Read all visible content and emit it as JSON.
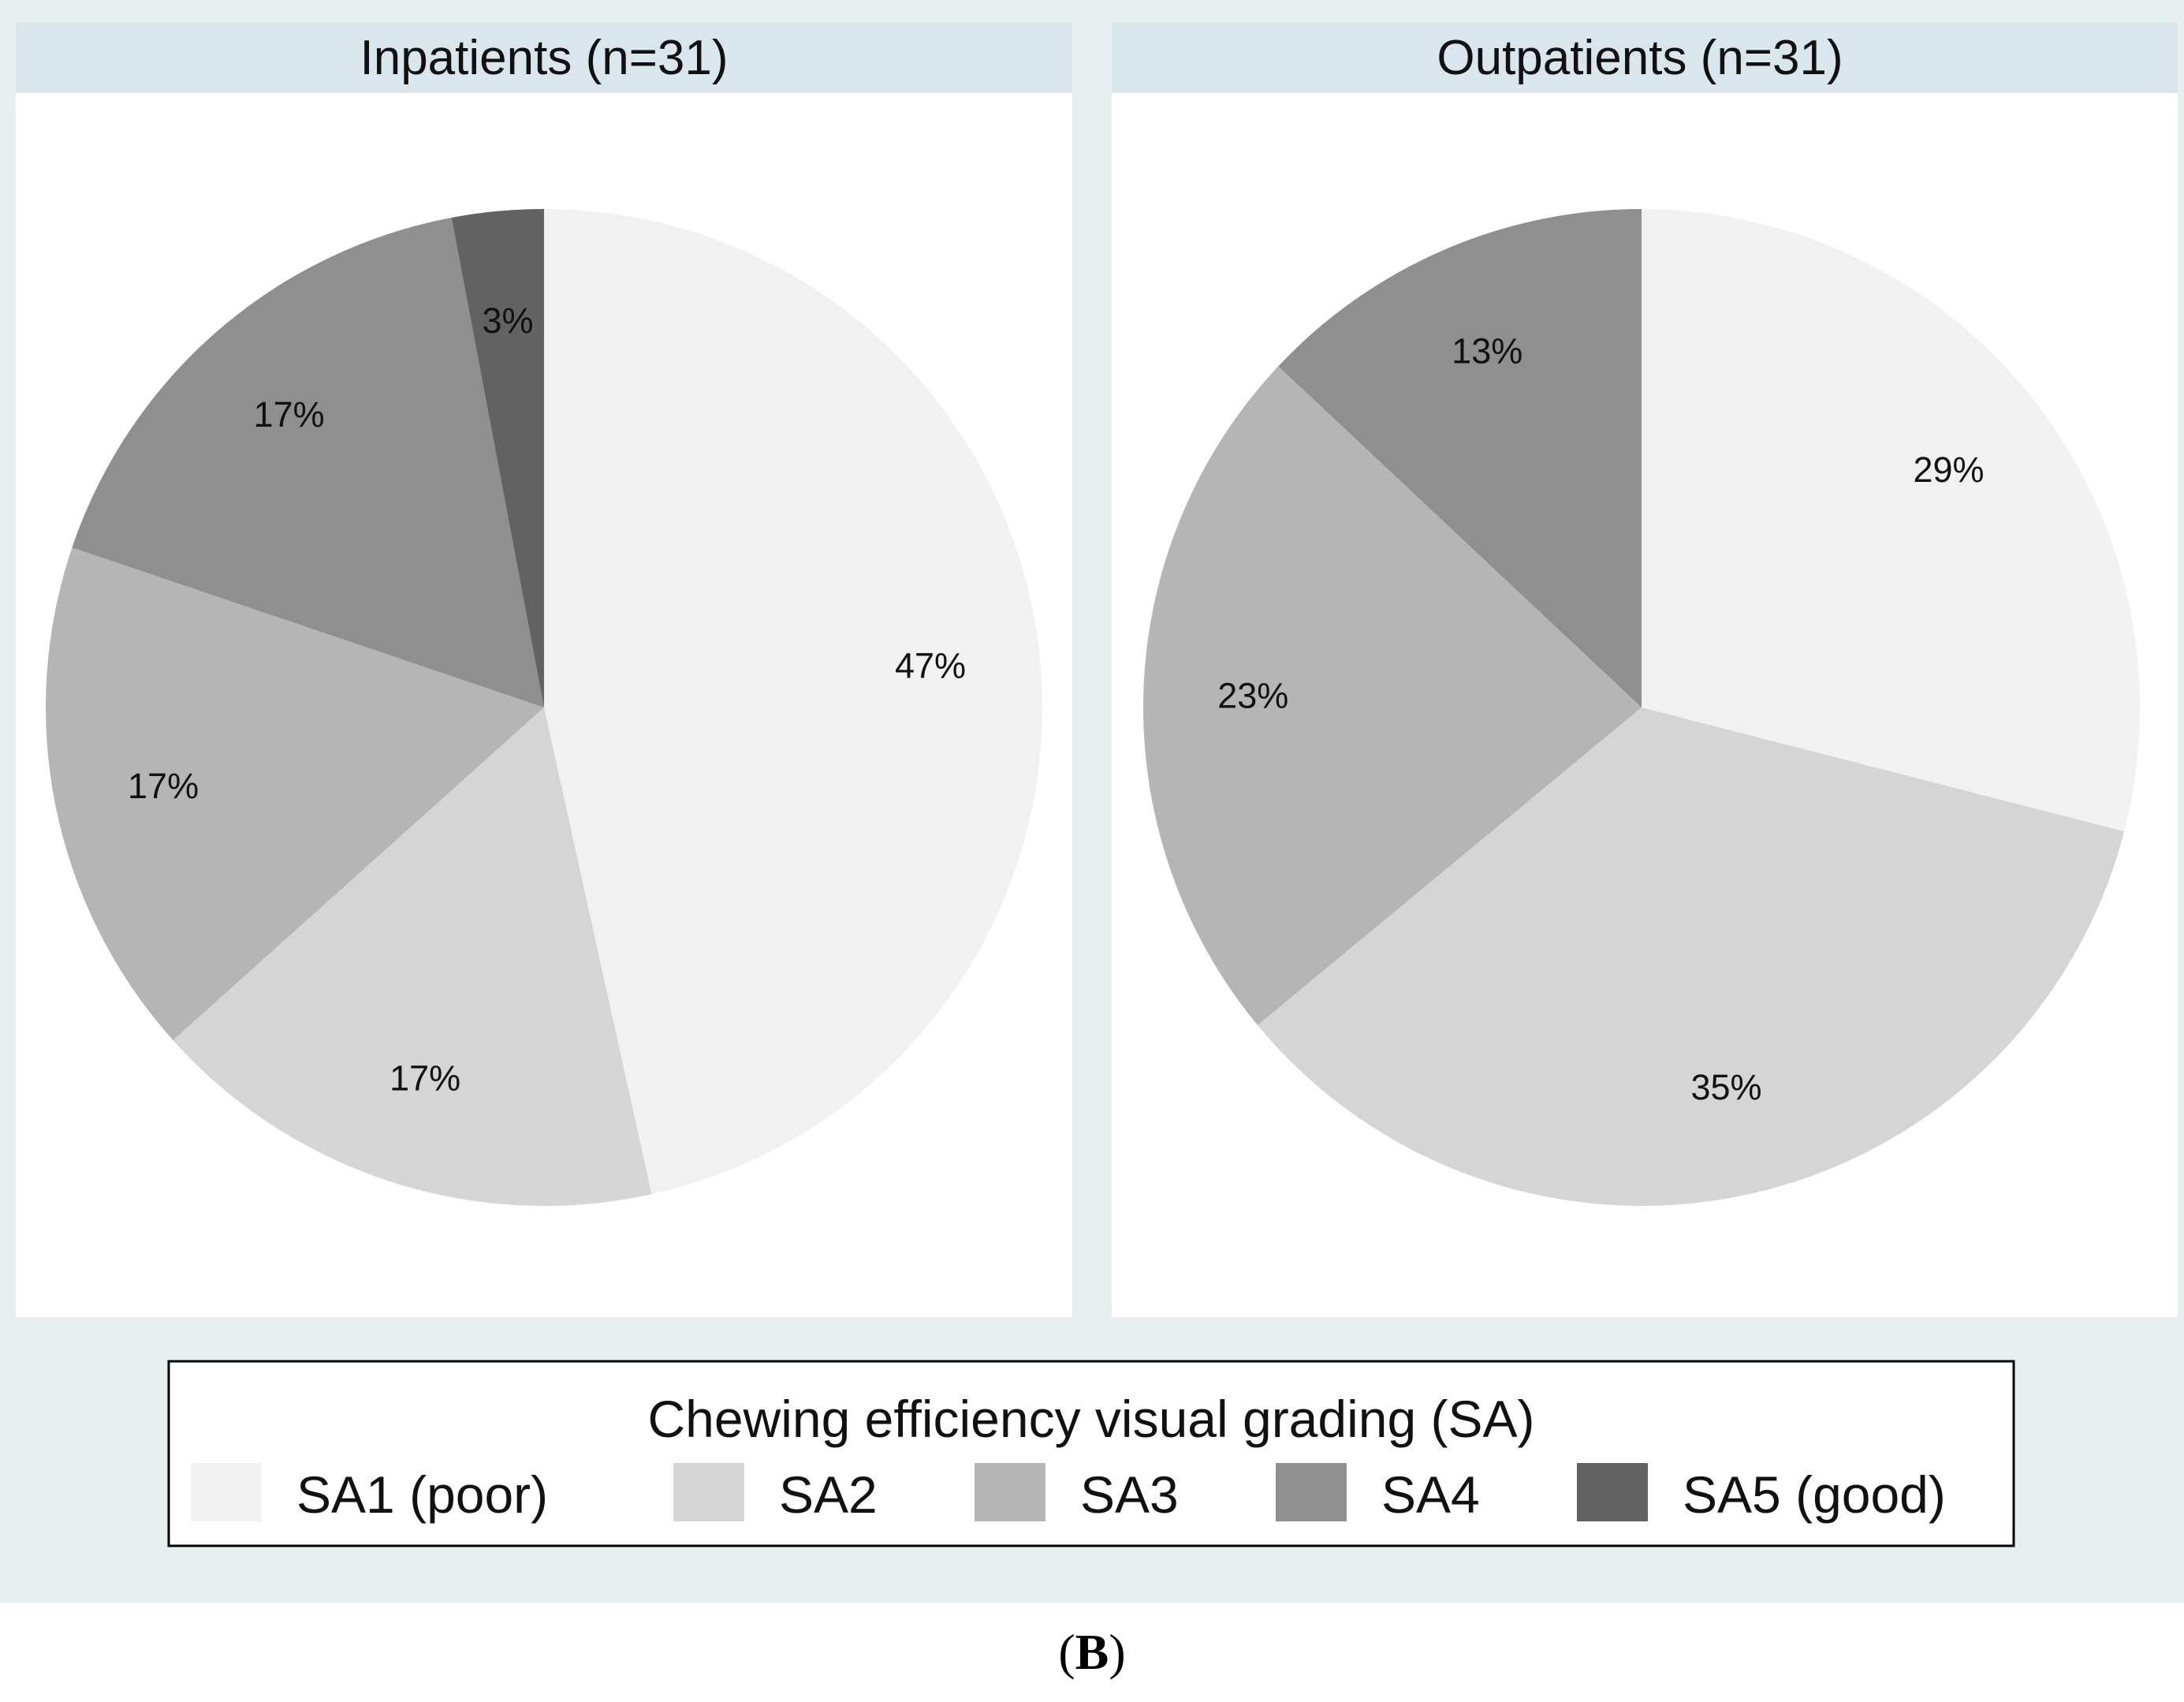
{
  "chart_data": {
    "type": "pie",
    "categories": [
      "SA1 (poor)",
      "SA2",
      "SA3",
      "SA4",
      "SA5 (good)"
    ],
    "colors": [
      "#f1f1f1",
      "#d5d5d5",
      "#b5b5b5",
      "#8f8f8f",
      "#626262"
    ],
    "panels": [
      {
        "title": "Inpatients (n=31)",
        "values": [
          47,
          17,
          17,
          17,
          3
        ],
        "labels": [
          "47%",
          "17%",
          "17%",
          "17%",
          "3%"
        ]
      },
      {
        "title": "Outpatients (n=31)",
        "values": [
          29,
          35,
          23,
          13,
          0
        ],
        "labels": [
          "29%",
          "35%",
          "23%",
          "13%",
          ""
        ]
      }
    ],
    "legend": {
      "title": "Chewing efficiency visual grading (SA)",
      "position": "bottom"
    },
    "start_angle": "12 o'clock",
    "direction": "clockwise"
  },
  "figure": {
    "caption_open": "(",
    "caption_letter": "B",
    "caption_close": ")"
  },
  "style": {
    "outer_background": "#e8eff1",
    "panel_header": "#d9e6ec",
    "panel_background": "#ffffff",
    "legend_border": "#000000"
  }
}
